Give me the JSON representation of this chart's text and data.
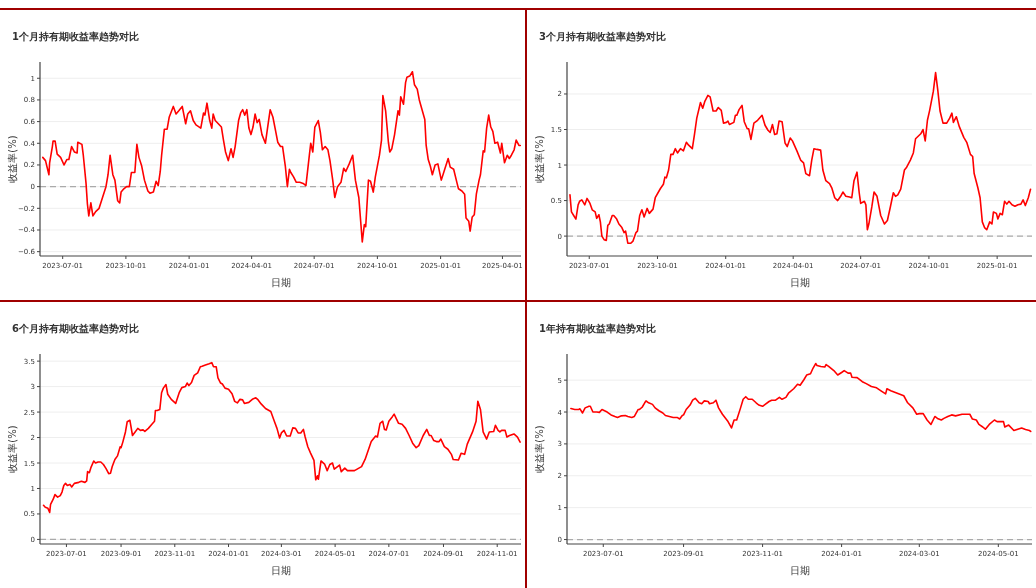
{
  "chart_data": [
    {
      "type": "line",
      "title": "1个月持有期收益率趋势对比",
      "xlabel": "日期",
      "ylabel": "收益率(%)",
      "grid": "y",
      "xlim": [
        "2023-05-29",
        "2025-04-28"
      ],
      "xticks": [
        "2023-07-01",
        "2023-10-01",
        "2024-01-01",
        "2024-04-01",
        "2024-07-01",
        "2024-10-01",
        "2025-01-01",
        "2025-04-01"
      ],
      "ylim": [
        -0.64,
        1.15
      ],
      "yticks": [
        -0.6,
        -0.4,
        -0.2,
        0,
        0.2,
        0.4,
        0.6,
        0.8,
        1
      ],
      "ref_lines": [
        {
          "axis": "y",
          "value": 0,
          "color": "#aaaaaa",
          "line_style": "dashed"
        }
      ],
      "x": [
        "2023-06-02",
        "2023-06-06",
        "2023-06-11",
        "2023-06-12",
        "2023-06-16",
        "2023-06-17",
        "2023-06-20",
        "2023-06-23",
        "2023-06-28",
        "2023-07-03",
        "2023-07-07",
        "2023-07-10",
        "2023-07-14",
        "2023-07-18",
        "2023-07-22",
        "2023-07-23",
        "2023-07-29",
        "2023-07-31",
        "2023-08-04",
        "2023-08-06",
        "2023-08-08",
        "2023-08-11",
        "2023-08-14",
        "2023-08-18",
        "2023-08-23",
        "2023-08-28",
        "2023-09-02",
        "2023-09-05",
        "2023-09-08",
        "2023-09-12",
        "2023-09-15",
        "2023-09-19",
        "2023-09-22",
        "2023-09-24",
        "2023-09-28",
        "2023-10-02",
        "2023-10-06",
        "2023-10-09",
        "2023-10-14",
        "2023-10-17",
        "2023-10-20",
        "2023-10-24",
        "2023-10-28",
        "2023-11-02",
        "2023-11-05",
        "2023-11-10",
        "2023-11-14",
        "2023-11-17",
        "2023-11-20",
        "2023-11-22",
        "2023-11-26",
        "2023-11-30",
        "2023-12-03",
        "2023-12-09",
        "2023-12-13",
        "2023-12-17",
        "2023-12-22",
        "2023-12-27",
        "2023-12-30",
        "2024-01-03",
        "2024-01-07",
        "2024-01-11",
        "2024-01-18",
        "2024-01-22",
        "2024-01-24",
        "2024-01-27",
        "2024-01-31",
        "2024-02-03",
        "2024-02-05",
        "2024-02-08",
        "2024-02-17",
        "2024-02-20",
        "2024-02-23",
        "2024-02-27",
        "2024-03-02",
        "2024-03-05",
        "2024-03-08",
        "2024-03-13",
        "2024-03-16",
        "2024-03-19",
        "2024-03-22",
        "2024-03-25",
        "2024-03-28",
        "2024-03-31",
        "2024-04-03",
        "2024-04-06",
        "2024-04-09",
        "2024-04-12",
        "2024-04-16",
        "2024-04-21",
        "2024-04-25",
        "2024-04-28",
        "2024-05-02",
        "2024-05-06",
        "2024-05-09",
        "2024-05-13",
        "2024-05-16",
        "2024-05-20",
        "2024-05-23",
        "2024-05-26",
        "2024-05-28",
        "2024-06-01",
        "2024-06-05",
        "2024-06-10",
        "2024-06-15",
        "2024-06-19",
        "2024-06-24",
        "2024-06-26",
        "2024-06-29",
        "2024-07-02",
        "2024-07-07",
        "2024-07-10",
        "2024-07-13",
        "2024-07-17",
        "2024-07-21",
        "2024-07-24",
        "2024-07-28",
        "2024-07-31",
        "2024-08-04",
        "2024-08-09",
        "2024-08-13",
        "2024-08-16",
        "2024-08-21",
        "2024-08-26",
        "2024-08-30",
        "2024-09-04",
        "2024-09-09",
        "2024-09-12",
        "2024-09-14",
        "2024-09-18",
        "2024-09-21",
        "2024-09-25",
        "2024-09-28",
        "2024-10-04",
        "2024-10-07",
        "2024-10-09",
        "2024-10-13",
        "2024-10-17",
        "2024-10-19",
        "2024-10-22",
        "2024-10-26",
        "2024-10-31",
        "2024-11-02",
        "2024-11-04",
        "2024-11-08",
        "2024-11-11",
        "2024-11-13",
        "2024-11-17",
        "2024-11-21",
        "2024-11-24",
        "2024-11-28",
        "2024-12-01",
        "2024-12-05",
        "2024-12-09",
        "2024-12-11",
        "2024-12-14",
        "2024-12-17",
        "2024-12-20",
        "2024-12-24",
        "2024-12-28",
        "2025-01-02",
        "2025-01-07",
        "2025-01-12",
        "2025-01-15",
        "2025-01-20",
        "2025-01-25",
        "2025-01-27",
        "2025-02-01",
        "2025-02-05",
        "2025-02-07",
        "2025-02-11",
        "2025-02-13",
        "2025-02-16",
        "2025-02-19",
        "2025-02-22",
        "2025-02-26",
        "2025-02-28",
        "2025-03-04",
        "2025-03-06",
        "2025-03-09",
        "2025-03-12",
        "2025-03-15",
        "2025-03-18",
        "2025-03-21",
        "2025-03-25",
        "2025-03-29",
        "2025-03-31",
        "2025-04-04",
        "2025-04-08",
        "2025-04-11",
        "2025-04-14",
        "2025-04-18",
        "2025-04-21",
        "2025-04-25",
        "2025-04-27"
      ],
      "series": [
        {
          "color": "#ff0000",
          "values": [
            0.27,
            0.24,
            0.11,
            0.22,
            0.37,
            0.42,
            0.42,
            0.3,
            0.27,
            0.2,
            0.25,
            0.25,
            0.37,
            0.32,
            0.31,
            0.41,
            0.39,
            0.29,
            0.03,
            -0.16,
            -0.27,
            -0.15,
            -0.27,
            -0.23,
            -0.2,
            -0.1,
            0.0,
            0.11,
            0.29,
            0.11,
            0.06,
            -0.13,
            -0.15,
            -0.05,
            -0.02,
            0.0,
            0.0,
            0.13,
            0.13,
            0.39,
            0.27,
            0.19,
            0.06,
            -0.04,
            -0.06,
            -0.05,
            0.05,
            0.01,
            0.14,
            0.29,
            0.53,
            0.53,
            0.64,
            0.74,
            0.67,
            0.7,
            0.74,
            0.58,
            0.67,
            0.7,
            0.61,
            0.57,
            0.54,
            0.68,
            0.66,
            0.77,
            0.61,
            0.54,
            0.67,
            0.61,
            0.55,
            0.43,
            0.32,
            0.24,
            0.35,
            0.27,
            0.37,
            0.61,
            0.68,
            0.71,
            0.66,
            0.71,
            0.54,
            0.48,
            0.55,
            0.67,
            0.59,
            0.62,
            0.48,
            0.4,
            0.58,
            0.71,
            0.64,
            0.51,
            0.41,
            0.37,
            0.37,
            0.19,
            0.0,
            0.16,
            0.13,
            0.09,
            0.04,
            0.04,
            0.03,
            0.01,
            0.29,
            0.4,
            0.32,
            0.55,
            0.61,
            0.5,
            0.34,
            0.37,
            0.34,
            0.24,
            0.06,
            -0.1,
            0.0,
            0.04,
            0.17,
            0.14,
            0.21,
            0.29,
            0.06,
            -0.1,
            -0.51,
            -0.35,
            -0.37,
            0.06,
            0.05,
            -0.05,
            0.09,
            0.29,
            0.43,
            0.84,
            0.7,
            0.41,
            0.32,
            0.35,
            0.48,
            0.7,
            0.66,
            0.83,
            0.76,
            0.96,
            1.01,
            1.02,
            1.06,
            0.94,
            0.9,
            0.8,
            0.71,
            0.62,
            0.38,
            0.25,
            0.19,
            0.11,
            0.2,
            0.21,
            0.06,
            0.16,
            0.26,
            0.18,
            0.16,
            0.03,
            -0.02,
            -0.04,
            -0.07,
            -0.29,
            -0.32,
            -0.41,
            -0.28,
            -0.26,
            -0.07,
            0.06,
            0.11,
            0.33,
            0.32,
            0.54,
            0.66,
            0.55,
            0.51,
            0.4,
            0.41,
            0.31,
            0.4,
            0.22,
            0.29,
            0.26,
            0.29,
            0.34,
            0.43,
            0.38,
            0.38
          ]
        }
      ]
    },
    {
      "type": "line",
      "title": "3个月持有期收益率趋势对比",
      "xlabel": "日期",
      "ylabel": "收益率(%)",
      "grid": "y",
      "xlim": [
        "2023-06-01",
        "2025-02-17"
      ],
      "xticks": [
        "2023-07-01",
        "2023-10-01",
        "2024-01-01",
        "2024-04-01",
        "2024-07-01",
        "2024-10-01",
        "2025-01-01"
      ],
      "ylim": [
        -0.28,
        2.45
      ],
      "yticks": [
        0,
        0.5,
        1,
        1.5,
        2
      ],
      "ref_lines": [
        {
          "axis": "y",
          "value": 0,
          "color": "#aaaaaa",
          "line_style": "dashed"
        }
      ],
      "x": [
        "2023-06-05",
        "2023-06-07",
        "2023-06-10",
        "2023-06-13",
        "2023-06-16",
        "2023-06-18",
        "2023-06-21",
        "2023-06-25",
        "2023-06-28",
        "2023-07-02",
        "2023-07-05",
        "2023-07-09",
        "2023-07-11",
        "2023-07-14",
        "2023-07-16",
        "2023-07-18",
        "2023-07-21",
        "2023-07-24",
        "2023-07-26",
        "2023-07-28",
        "2023-08-01",
        "2023-08-03",
        "2023-08-07",
        "2023-08-10",
        "2023-08-14",
        "2023-08-17",
        "2023-08-19",
        "2023-08-22",
        "2023-08-26",
        "2023-08-29",
        "2023-09-02",
        "2023-09-04",
        "2023-09-07",
        "2023-09-10",
        "2023-09-13",
        "2023-09-17",
        "2023-09-20",
        "2023-09-25",
        "2023-09-28",
        "2023-10-05",
        "2023-10-09",
        "2023-10-11",
        "2023-10-13",
        "2023-10-16",
        "2023-10-19",
        "2023-10-22",
        "2023-10-25",
        "2023-10-28",
        "2023-11-01",
        "2023-11-05",
        "2023-11-09",
        "2023-11-12",
        "2023-11-17",
        "2023-11-20",
        "2023-11-23",
        "2023-11-28",
        "2023-12-01",
        "2023-12-04",
        "2023-12-08",
        "2023-12-11",
        "2023-12-15",
        "2023-12-19",
        "2023-12-22",
        "2023-12-26",
        "2023-12-29",
        "2024-01-02",
        "2024-01-04",
        "2024-01-06",
        "2024-01-12",
        "2024-01-14",
        "2024-01-16",
        "2024-01-19",
        "2024-01-23",
        "2024-01-26",
        "2024-01-30",
        "2024-02-01",
        "2024-02-04",
        "2024-02-08",
        "2024-02-13",
        "2024-02-19",
        "2024-02-23",
        "2024-02-27",
        "2024-03-01",
        "2024-03-04",
        "2024-03-07",
        "2024-03-10",
        "2024-03-13",
        "2024-03-17",
        "2024-03-21",
        "2024-03-24",
        "2024-03-28",
        "2024-03-31",
        "2024-04-06",
        "2024-04-11",
        "2024-04-15",
        "2024-04-18",
        "2024-04-23",
        "2024-04-26",
        "2024-04-29",
        "2024-05-03",
        "2024-05-08",
        "2024-05-11",
        "2024-05-15",
        "2024-05-20",
        "2024-05-23",
        "2024-05-27",
        "2024-05-31",
        "2024-06-04",
        "2024-06-07",
        "2024-06-11",
        "2024-06-16",
        "2024-06-19",
        "2024-06-22",
        "2024-06-26",
        "2024-06-29",
        "2024-07-01",
        "2024-07-06",
        "2024-07-08",
        "2024-07-10",
        "2024-07-12",
        "2024-07-16",
        "2024-07-19",
        "2024-07-23",
        "2024-07-28",
        "2024-08-02",
        "2024-08-06",
        "2024-08-10",
        "2024-08-14",
        "2024-08-17",
        "2024-08-20",
        "2024-08-24",
        "2024-08-29",
        "2024-09-01",
        "2024-09-06",
        "2024-09-10",
        "2024-09-13",
        "2024-09-20",
        "2024-09-23",
        "2024-09-26",
        "2024-09-29",
        "2024-10-02",
        "2024-10-07",
        "2024-10-10",
        "2024-10-13",
        "2024-10-16",
        "2024-10-20",
        "2024-10-25",
        "2024-10-29",
        "2024-11-01",
        "2024-11-03",
        "2024-11-07",
        "2024-11-11",
        "2024-11-17",
        "2024-11-21",
        "2024-11-26",
        "2024-11-29",
        "2024-12-01",
        "2024-12-06",
        "2024-12-09",
        "2024-12-12",
        "2024-12-15",
        "2024-12-18",
        "2024-12-22",
        "2024-12-25",
        "2024-12-27",
        "2024-12-31",
        "2025-01-02",
        "2025-01-05",
        "2025-01-08",
        "2025-01-11",
        "2025-01-14",
        "2025-01-17",
        "2025-01-21",
        "2025-01-25",
        "2025-01-29",
        "2025-02-02",
        "2025-02-05",
        "2025-02-08",
        "2025-02-12",
        "2025-02-15"
      ],
      "series": [
        {
          "color": "#ff0000",
          "values": [
            0.58,
            0.34,
            0.29,
            0.24,
            0.44,
            0.49,
            0.51,
            0.44,
            0.53,
            0.46,
            0.37,
            0.34,
            0.25,
            0.3,
            0.2,
            0.0,
            -0.05,
            -0.06,
            0.15,
            0.17,
            0.29,
            0.29,
            0.24,
            0.17,
            0.12,
            0.05,
            0.07,
            -0.1,
            -0.1,
            -0.07,
            0.05,
            0.07,
            0.29,
            0.37,
            0.27,
            0.39,
            0.32,
            0.38,
            0.54,
            0.67,
            0.73,
            0.83,
            0.82,
            0.93,
            1.15,
            1.15,
            1.23,
            1.17,
            1.23,
            1.2,
            1.32,
            1.28,
            1.23,
            1.44,
            1.66,
            1.88,
            1.8,
            1.9,
            1.98,
            1.96,
            1.76,
            1.76,
            1.81,
            1.77,
            1.59,
            1.6,
            1.62,
            1.57,
            1.6,
            1.7,
            1.7,
            1.78,
            1.84,
            1.61,
            1.51,
            1.51,
            1.36,
            1.59,
            1.63,
            1.7,
            1.56,
            1.49,
            1.46,
            1.57,
            1.43,
            1.44,
            1.62,
            1.61,
            1.31,
            1.26,
            1.38,
            1.34,
            1.2,
            1.07,
            1.03,
            0.88,
            0.85,
            1.07,
            1.23,
            1.22,
            1.21,
            0.93,
            0.78,
            0.74,
            0.68,
            0.54,
            0.5,
            0.56,
            0.62,
            0.56,
            0.55,
            0.54,
            0.78,
            0.9,
            0.61,
            0.46,
            0.49,
            0.44,
            0.09,
            0.17,
            0.41,
            0.62,
            0.56,
            0.29,
            0.17,
            0.22,
            0.41,
            0.61,
            0.56,
            0.58,
            0.66,
            0.93,
            0.97,
            1.07,
            1.17,
            1.37,
            1.44,
            1.5,
            1.34,
            1.63,
            1.77,
            2.04,
            2.3,
            2.05,
            1.76,
            1.59,
            1.59,
            1.66,
            1.73,
            1.6,
            1.68,
            1.54,
            1.39,
            1.32,
            1.15,
            1.12,
            0.88,
            0.68,
            0.54,
            0.2,
            0.12,
            0.09,
            0.2,
            0.17,
            0.34,
            0.32,
            0.24,
            0.32,
            0.3,
            0.49,
            0.45,
            0.49,
            0.44,
            0.42,
            0.44,
            0.45,
            0.51,
            0.43,
            0.54,
            0.66
          ]
        }
      ]
    },
    {
      "type": "line",
      "title": "6个月持有期收益率趋势对比",
      "xlabel": "日期",
      "ylabel": "收益率(%)",
      "grid": "y",
      "xlim": [
        "2023-06-01",
        "2024-11-28"
      ],
      "xticks": [
        "2023-07-01",
        "2023-09-01",
        "2023-11-01",
        "2024-01-01",
        "2024-03-01",
        "2024-05-01",
        "2024-07-01",
        "2024-09-01",
        "2024-11-01"
      ],
      "ylim": [
        -0.09,
        3.64
      ],
      "yticks": [
        0,
        0.5,
        1,
        1.5,
        2,
        2.5,
        3,
        3.5
      ],
      "ref_lines": [
        {
          "axis": "y",
          "value": 0,
          "color": "#aaaaaa",
          "line_style": "dashed"
        }
      ],
      "x": [
        "2023-06-05",
        "2023-06-07",
        "2023-06-10",
        "2023-06-12",
        "2023-06-13",
        "2023-06-16",
        "2023-06-18",
        "2023-06-21",
        "2023-06-24",
        "2023-06-26",
        "2023-06-28",
        "2023-06-30",
        "2023-07-02",
        "2023-07-05",
        "2023-07-07",
        "2023-07-10",
        "2023-07-15",
        "2023-07-18",
        "2023-07-22",
        "2023-07-24",
        "2023-07-25",
        "2023-07-27",
        "2023-07-29",
        "2023-08-01",
        "2023-08-03",
        "2023-08-06",
        "2023-08-09",
        "2023-08-12",
        "2023-08-15",
        "2023-08-18",
        "2023-08-20",
        "2023-08-22",
        "2023-08-25",
        "2023-08-28",
        "2023-08-31",
        "2023-09-01",
        "2023-09-03",
        "2023-09-06",
        "2023-09-08",
        "2023-09-11",
        "2023-09-14",
        "2023-09-17",
        "2023-09-20",
        "2023-09-23",
        "2023-09-26",
        "2023-09-28",
        "2023-10-02",
        "2023-10-06",
        "2023-10-09",
        "2023-10-10",
        "2023-10-12",
        "2023-10-15",
        "2023-10-17",
        "2023-10-19",
        "2023-10-22",
        "2023-10-24",
        "2023-10-28",
        "2023-11-02",
        "2023-11-06",
        "2023-11-09",
        "2023-11-13",
        "2023-11-15",
        "2023-11-17",
        "2023-11-20",
        "2023-11-23",
        "2023-11-27",
        "2023-11-30",
        "2023-12-02",
        "2023-12-05",
        "2023-12-10",
        "2023-12-13",
        "2023-12-15",
        "2023-12-18",
        "2023-12-20",
        "2023-12-23",
        "2023-12-25",
        "2023-12-28",
        "2024-01-01",
        "2024-01-05",
        "2024-01-08",
        "2024-01-11",
        "2024-01-14",
        "2024-01-17",
        "2024-01-19",
        "2024-01-24",
        "2024-01-28",
        "2024-02-01",
        "2024-02-03",
        "2024-02-07",
        "2024-02-12",
        "2024-02-18",
        "2024-02-22",
        "2024-02-25",
        "2024-02-28",
        "2024-03-01",
        "2024-03-04",
        "2024-03-07",
        "2024-03-11",
        "2024-03-14",
        "2024-03-17",
        "2024-03-20",
        "2024-03-23",
        "2024-03-26",
        "2024-03-28",
        "2024-03-31",
        "2024-04-03",
        "2024-04-07",
        "2024-04-09",
        "2024-04-11",
        "2024-04-12",
        "2024-04-15",
        "2024-04-19",
        "2024-04-22",
        "2024-04-25",
        "2024-04-28",
        "2024-04-30",
        "2024-05-03",
        "2024-05-06",
        "2024-05-08",
        "2024-05-12",
        "2024-05-15",
        "2024-05-23",
        "2024-05-28",
        "2024-05-31",
        "2024-06-04",
        "2024-06-08",
        "2024-06-11",
        "2024-06-16",
        "2024-06-18",
        "2024-06-21",
        "2024-06-24",
        "2024-06-26",
        "2024-06-28",
        "2024-07-01",
        "2024-07-05",
        "2024-07-07",
        "2024-07-12",
        "2024-07-16",
        "2024-07-20",
        "2024-07-24",
        "2024-07-28",
        "2024-08-01",
        "2024-08-04",
        "2024-08-09",
        "2024-08-13",
        "2024-08-16",
        "2024-08-18",
        "2024-08-21",
        "2024-08-24",
        "2024-08-27",
        "2024-08-29",
        "2024-09-02",
        "2024-09-06",
        "2024-09-10",
        "2024-09-12",
        "2024-09-18",
        "2024-09-21",
        "2024-09-25",
        "2024-09-28",
        "2024-10-04",
        "2024-10-08",
        "2024-10-10",
        "2024-10-13",
        "2024-10-16",
        "2024-10-20",
        "2024-10-23",
        "2024-10-28",
        "2024-10-30",
        "2024-11-02",
        "2024-11-04",
        "2024-11-06",
        "2024-11-10",
        "2024-11-12",
        "2024-11-15",
        "2024-11-20",
        "2024-11-24",
        "2024-11-27"
      ],
      "series": [
        {
          "color": "#ff0000",
          "values": [
            0.67,
            0.63,
            0.61,
            0.53,
            0.69,
            0.79,
            0.88,
            0.83,
            0.86,
            0.93,
            1.06,
            1.1,
            1.06,
            1.08,
            1.03,
            1.1,
            1.12,
            1.14,
            1.12,
            1.15,
            1.33,
            1.31,
            1.42,
            1.54,
            1.5,
            1.52,
            1.52,
            1.47,
            1.39,
            1.29,
            1.3,
            1.43,
            1.57,
            1.64,
            1.82,
            1.8,
            1.91,
            2.11,
            2.31,
            2.34,
            2.04,
            2.11,
            2.18,
            2.14,
            2.15,
            2.12,
            2.18,
            2.26,
            2.32,
            2.53,
            2.53,
            2.55,
            2.88,
            2.97,
            3.04,
            2.85,
            2.75,
            2.67,
            2.88,
            2.98,
            3.0,
            3.07,
            3.02,
            3.08,
            3.22,
            3.27,
            3.39,
            3.4,
            3.42,
            3.45,
            3.47,
            3.39,
            3.39,
            3.17,
            3.07,
            3.05,
            2.97,
            2.95,
            2.86,
            2.71,
            2.68,
            2.75,
            2.74,
            2.67,
            2.69,
            2.75,
            2.78,
            2.75,
            2.66,
            2.57,
            2.51,
            2.32,
            2.18,
            1.99,
            2.09,
            2.14,
            2.03,
            2.03,
            2.19,
            2.18,
            2.09,
            2.09,
            2.16,
            2.01,
            1.82,
            1.7,
            1.55,
            1.17,
            1.25,
            1.18,
            1.54,
            1.48,
            1.35,
            1.47,
            1.5,
            1.38,
            1.42,
            1.46,
            1.33,
            1.4,
            1.35,
            1.35,
            1.4,
            1.43,
            1.57,
            1.77,
            1.92,
            2.03,
            2.01,
            2.28,
            2.32,
            2.16,
            2.15,
            2.32,
            2.41,
            2.46,
            2.28,
            2.26,
            2.18,
            2.04,
            1.89,
            1.8,
            1.84,
            2.04,
            2.16,
            2.04,
            2.04,
            1.94,
            1.92,
            1.92,
            1.97,
            1.82,
            1.77,
            1.67,
            1.57,
            1.56,
            1.69,
            1.67,
            1.87,
            2.11,
            2.32,
            2.71,
            2.55,
            2.11,
            1.97,
            2.11,
            2.12,
            2.24,
            2.14,
            2.11,
            2.14,
            2.14,
            2.01,
            2.04,
            2.07,
            2.01,
            1.91
          ]
        }
      ]
    },
    {
      "type": "line",
      "title": "1年持有期收益率趋势对比",
      "xlabel": "日期",
      "ylabel": "收益率(%)",
      "grid": "y",
      "xlim": [
        "2023-06-03",
        "2024-05-27"
      ],
      "xticks": [
        "2023-07-01",
        "2023-09-01",
        "2023-11-01",
        "2024-01-01",
        "2024-03-01",
        "2024-05-01"
      ],
      "ylim": [
        -0.14,
        5.82
      ],
      "yticks": [
        0,
        1,
        2,
        3,
        4,
        5
      ],
      "ref_lines": [
        {
          "axis": "y",
          "value": 0,
          "color": "#aaaaaa",
          "line_style": "dashed"
        }
      ],
      "x": [
        "2023-06-06",
        "2023-06-09",
        "2023-06-12",
        "2023-06-13",
        "2023-06-15",
        "2023-06-17",
        "2023-06-20",
        "2023-06-21",
        "2023-06-23",
        "2023-06-26",
        "2023-06-28",
        "2023-06-30",
        "2023-07-02",
        "2023-07-04",
        "2023-07-07",
        "2023-07-10",
        "2023-07-12",
        "2023-07-15",
        "2023-07-18",
        "2023-07-20",
        "2023-07-23",
        "2023-07-25",
        "2023-07-28",
        "2023-07-29",
        "2023-07-31",
        "2023-08-02",
        "2023-08-03",
        "2023-08-05",
        "2023-08-08",
        "2023-08-10",
        "2023-08-13",
        "2023-08-16",
        "2023-08-18",
        "2023-08-21",
        "2023-08-24",
        "2023-08-27",
        "2023-08-29",
        "2023-08-31",
        "2023-09-01",
        "2023-09-03",
        "2023-09-06",
        "2023-09-08",
        "2023-09-10",
        "2023-09-13",
        "2023-09-15",
        "2023-09-17",
        "2023-09-20",
        "2023-09-21",
        "2023-09-24",
        "2023-09-26",
        "2023-09-28",
        "2023-10-01",
        "2023-10-05",
        "2023-10-08",
        "2023-10-10",
        "2023-10-12",
        "2023-10-15",
        "2023-10-17",
        "2023-10-19",
        "2023-10-21",
        "2023-10-24",
        "2023-10-27",
        "2023-10-29",
        "2023-11-01",
        "2023-11-03",
        "2023-11-06",
        "2023-11-08",
        "2023-11-11",
        "2023-11-14",
        "2023-11-16",
        "2023-11-19",
        "2023-11-21",
        "2023-11-25",
        "2023-11-28",
        "2023-11-30",
        "2023-12-03",
        "2023-12-05",
        "2023-12-08",
        "2023-12-10",
        "2023-12-12",
        "2023-12-13",
        "2023-12-16",
        "2023-12-19",
        "2023-12-20",
        "2023-12-22",
        "2023-12-26",
        "2023-12-29",
        "2024-01-01",
        "2024-01-03",
        "2024-01-06",
        "2024-01-08",
        "2024-01-09",
        "2024-01-13",
        "2024-01-17",
        "2024-01-20",
        "2024-01-24",
        "2024-01-28",
        "2024-02-01",
        "2024-02-04",
        "2024-02-05",
        "2024-02-08",
        "2024-02-13",
        "2024-02-18",
        "2024-02-21",
        "2024-02-25",
        "2024-02-28",
        "2024-03-01",
        "2024-03-04",
        "2024-03-07",
        "2024-03-10",
        "2024-03-13",
        "2024-03-15",
        "2024-03-18",
        "2024-03-20",
        "2024-03-23",
        "2024-03-26",
        "2024-03-29",
        "2024-04-03",
        "2024-04-09",
        "2024-04-11",
        "2024-04-14",
        "2024-04-16",
        "2024-04-19",
        "2024-04-21",
        "2024-04-24",
        "2024-04-28",
        "2024-04-30",
        "2024-05-05",
        "2024-05-06",
        "2024-05-09",
        "2024-05-13",
        "2024-05-16",
        "2024-05-19",
        "2024-05-22",
        "2024-05-25",
        "2024-05-26"
      ],
      "series": [
        {
          "color": "#ff0000",
          "values": [
            4.11,
            4.08,
            4.08,
            4.1,
            3.97,
            4.13,
            4.18,
            4.18,
            4.0,
            4.0,
            3.99,
            4.08,
            4.04,
            4.0,
            3.91,
            3.86,
            3.83,
            3.88,
            3.89,
            3.86,
            3.83,
            3.86,
            4.08,
            4.08,
            4.15,
            4.29,
            4.35,
            4.29,
            4.24,
            4.13,
            4.04,
            3.97,
            3.89,
            3.86,
            3.83,
            3.83,
            3.78,
            3.89,
            3.91,
            4.08,
            4.22,
            4.37,
            4.43,
            4.29,
            4.26,
            4.35,
            4.33,
            4.26,
            4.29,
            4.37,
            4.13,
            3.93,
            3.72,
            3.5,
            3.75,
            3.75,
            4.13,
            4.4,
            4.48,
            4.4,
            4.4,
            4.29,
            4.22,
            4.18,
            4.24,
            4.33,
            4.37,
            4.37,
            4.46,
            4.4,
            4.46,
            4.59,
            4.73,
            4.87,
            4.84,
            5.02,
            5.16,
            5.2,
            5.38,
            5.52,
            5.46,
            5.43,
            5.41,
            5.49,
            5.43,
            5.3,
            5.16,
            5.24,
            5.3,
            5.22,
            5.22,
            5.09,
            5.08,
            4.95,
            4.89,
            4.8,
            4.76,
            4.65,
            4.57,
            4.73,
            4.67,
            4.59,
            4.51,
            4.29,
            4.13,
            3.93,
            3.95,
            3.95,
            3.75,
            3.61,
            3.86,
            3.8,
            3.75,
            3.8,
            3.86,
            3.91,
            3.88,
            3.93,
            3.93,
            3.78,
            3.75,
            3.61,
            3.53,
            3.46,
            3.61,
            3.75,
            3.7,
            3.7,
            3.53,
            3.59,
            3.42,
            3.46,
            3.5,
            3.45,
            3.42,
            3.39
          ]
        }
      ]
    }
  ]
}
